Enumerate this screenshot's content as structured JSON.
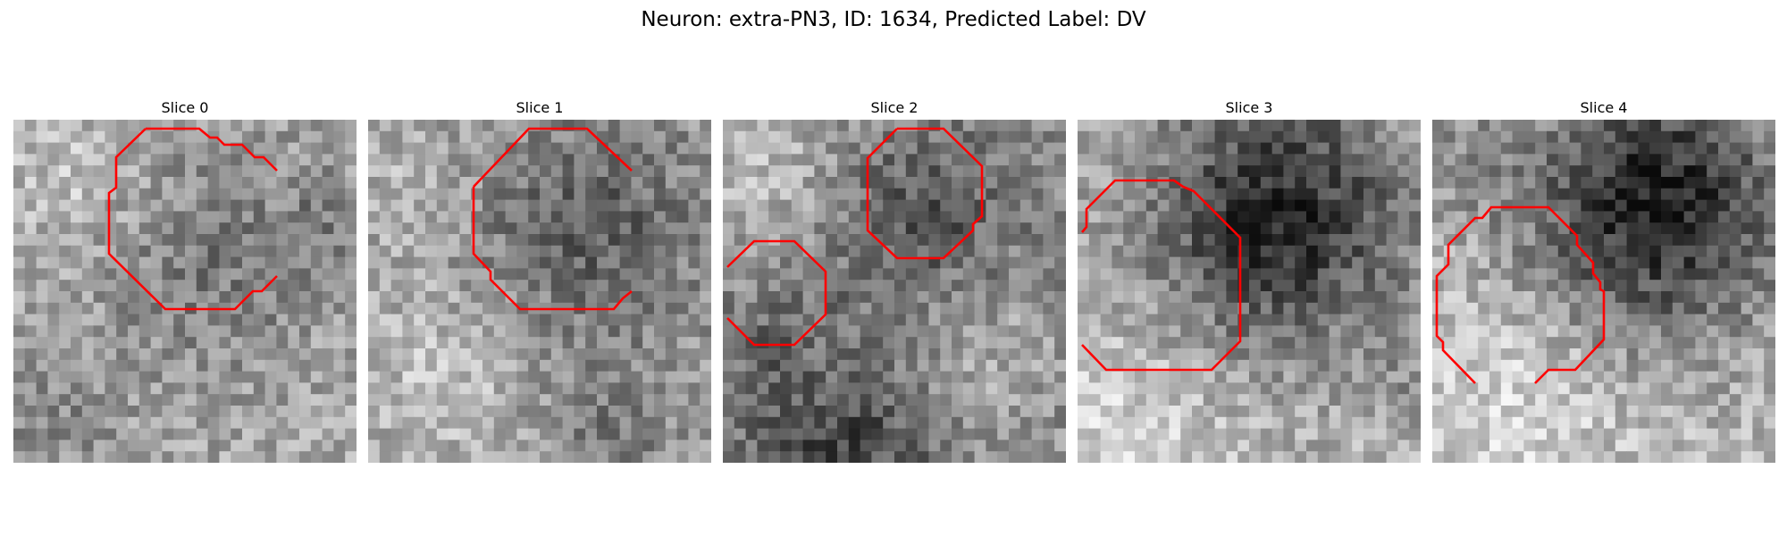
{
  "figure": {
    "title": "Neuron: extra-PN3, ID: 1634, Predicted Label: DV"
  },
  "contour_color": "#ff0000",
  "slices": [
    {
      "title": "Slice 0"
    },
    {
      "title": "Slice 1"
    },
    {
      "title": "Slice 2"
    },
    {
      "title": "Slice 3"
    },
    {
      "title": "Slice 4"
    }
  ]
}
